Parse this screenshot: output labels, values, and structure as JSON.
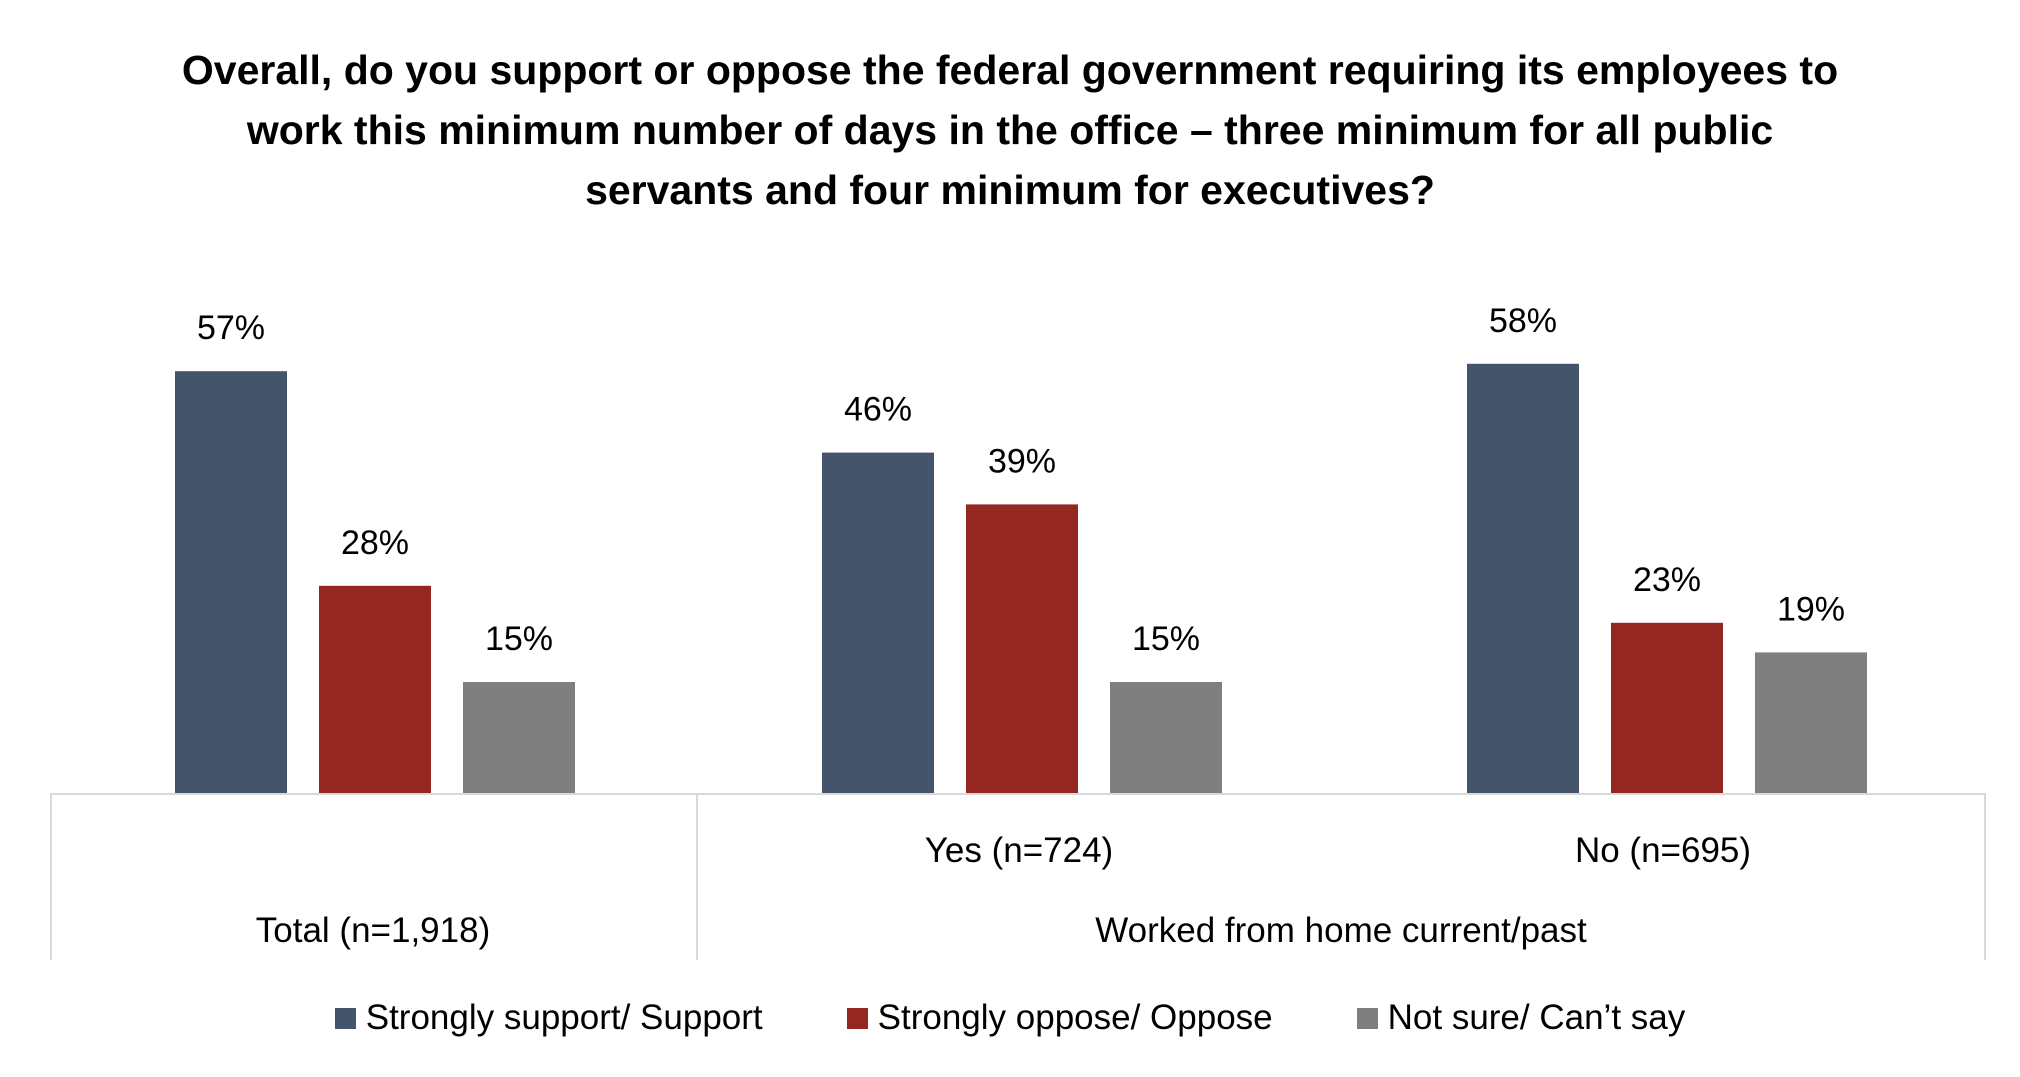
{
  "chart_data": {
    "type": "bar",
    "title": "Overall, do you support or oppose the federal government requiring its employees to work this minimum number of days in the office – three minimum for all public servants and four minimum for executives?",
    "categories": [
      "Total (n=1,918)",
      "Yes (n=724)",
      "No (n=695)"
    ],
    "category_group": {
      "label": "Worked from home current/past",
      "members": [
        "Yes (n=724)",
        "No (n=695)"
      ]
    },
    "series": [
      {
        "name": "Strongly support/ Support",
        "color": "#44546a",
        "values": [
          57,
          46,
          58
        ],
        "labels": [
          "57%",
          "46%",
          "58%"
        ]
      },
      {
        "name": "Strongly oppose/ Oppose",
        "color": "#952723",
        "values": [
          28,
          39,
          23
        ],
        "labels": [
          "28%",
          "39%",
          "23%"
        ]
      },
      {
        "name": "Not sure/ Can’t say",
        "color": "#7f7f7f",
        "values": [
          15,
          15,
          19
        ],
        "labels": [
          "15%",
          "15%",
          "19%"
        ]
      }
    ],
    "xlabel": "",
    "ylabel": "",
    "ylim": [
      0,
      60
    ],
    "grid": false,
    "legend_position": "bottom"
  }
}
